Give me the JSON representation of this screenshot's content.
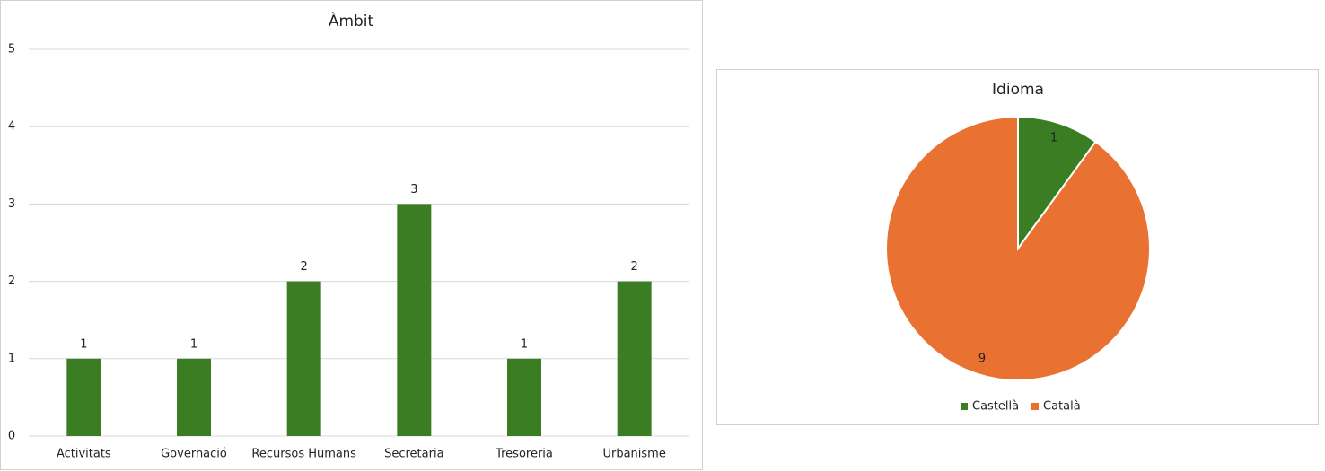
{
  "chart_data": [
    {
      "type": "bar",
      "title": "Àmbit",
      "categories": [
        "Activitats",
        "Governació",
        "Recursos Humans",
        "Secretaria",
        "Tresoreria",
        "Urbanisme"
      ],
      "values": [
        1,
        1,
        2,
        3,
        1,
        2
      ],
      "color": "#3a7d22",
      "ylim": [
        0,
        5
      ],
      "yticks": [
        0,
        1,
        2,
        3,
        4,
        5
      ],
      "grid": true
    },
    {
      "type": "pie",
      "title": "Idioma",
      "categories": [
        "Castellà",
        "Català"
      ],
      "values": [
        1,
        9
      ],
      "colors": [
        "#3a7d22",
        "#e97132"
      ],
      "legend": "bottom"
    }
  ]
}
